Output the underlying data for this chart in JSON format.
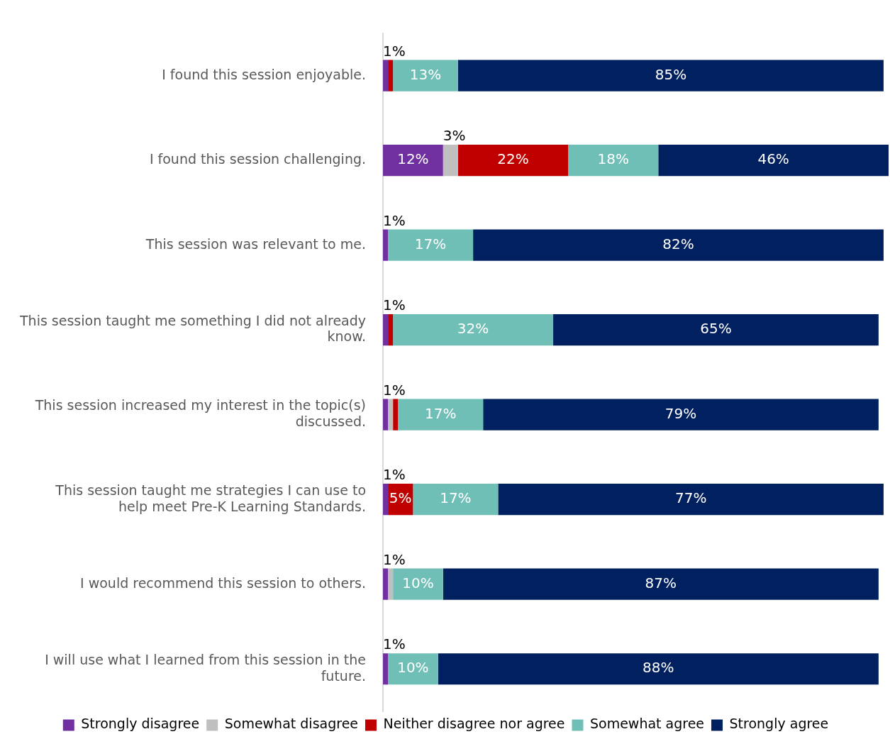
{
  "chart_data": {
    "type": "bar",
    "orientation": "horizontal",
    "stacked": true,
    "categories": [
      "I found this session enjoyable.",
      "I found this session challenging.",
      "This session was relevant to me.",
      "This session taught me something I did not already know.",
      "This session increased my interest in the topic(s) discussed.",
      "This session taught me strategies I can use to help meet Pre-K Learning Standards.",
      "I would recommend this session to others.",
      "I will use what I learned from this session in the future."
    ],
    "xlim": [
      0,
      101
    ],
    "tick_labels": "y",
    "legend": "bottom",
    "series": [
      {
        "name": "Strongly disagree",
        "color": "#7030a0",
        "values": [
          1,
          12,
          1,
          1,
          1,
          1,
          1,
          1
        ],
        "value_labels": [
          "1%",
          "12%",
          "1%",
          "1%",
          "1%",
          "1%",
          "1%",
          "1%"
        ]
      },
      {
        "name": "Somewhat disagree",
        "color": "#bfbfbf",
        "values": [
          null,
          3,
          null,
          null,
          1,
          null,
          1,
          null
        ],
        "value_labels": [
          null,
          "3%",
          null,
          null,
          null,
          null,
          null,
          null
        ]
      },
      {
        "name": "Neither disagree nor agree",
        "color": "#c00000",
        "values": [
          1,
          22,
          null,
          1,
          1,
          5,
          null,
          null
        ],
        "value_labels": [
          null,
          "22%",
          null,
          null,
          null,
          "5%",
          null,
          null
        ]
      },
      {
        "name": "Somewhat agree",
        "color": "#70bfb6",
        "values": [
          13,
          18,
          17,
          32,
          17,
          17,
          10,
          10
        ],
        "value_labels": [
          "13%",
          "18%",
          "17%",
          "32%",
          "17%",
          "17%",
          "10%",
          "10%"
        ]
      },
      {
        "name": "Strongly agree",
        "color": "#002060",
        "values": [
          85,
          46,
          82,
          65,
          79,
          77,
          87,
          88
        ],
        "value_labels": [
          "85%",
          "46%",
          "82%",
          "65%",
          "79%",
          "77%",
          "87%",
          "88%"
        ]
      }
    ]
  }
}
